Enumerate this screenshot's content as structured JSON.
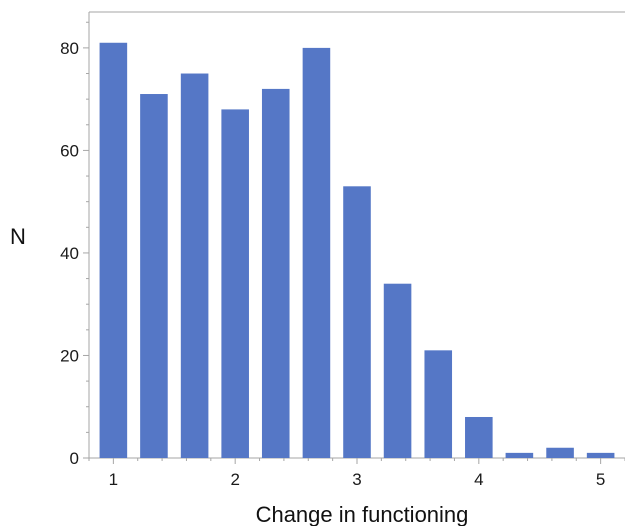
{
  "chart_data": {
    "type": "bar",
    "title": "",
    "xlabel": "Change in functioning",
    "ylabel": "N",
    "x": [
      1.0,
      1.333,
      1.667,
      2.0,
      2.333,
      2.667,
      3.0,
      3.333,
      3.667,
      4.0,
      4.333,
      4.667,
      5.0
    ],
    "values": [
      81,
      71,
      75,
      68,
      72,
      80,
      53,
      34,
      21,
      8,
      1,
      2,
      1
    ],
    "xlim": [
      0.8,
      5.2
    ],
    "ylim": [
      0,
      87
    ],
    "xticks": [
      1,
      2,
      3,
      4,
      5
    ],
    "xtick_labels": [
      "1",
      "2",
      "3",
      "4",
      "5"
    ],
    "yticks": [
      0,
      20,
      40,
      60,
      80
    ],
    "ytick_labels": [
      "0",
      "20",
      "40",
      "60",
      "80"
    ],
    "grid": false,
    "legend": "none",
    "colors": {
      "bar": "#5577c6",
      "axis": "#a6a6a6",
      "text": "#1a1a1a"
    }
  }
}
